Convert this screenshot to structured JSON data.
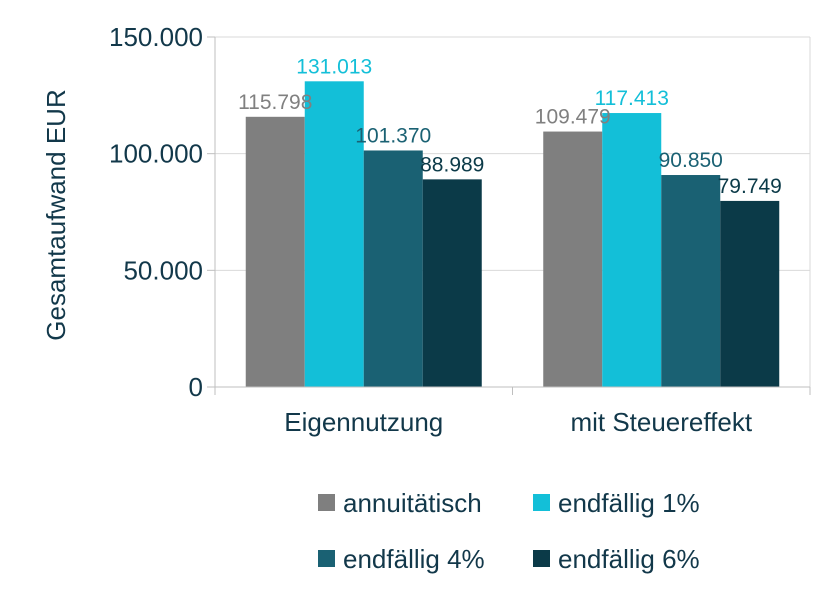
{
  "chart_data": {
    "type": "bar",
    "title": "",
    "xlabel": "",
    "ylabel": "Gesamtaufwand EUR",
    "categories": [
      "Eigennutzung",
      "mit Steuereffekt"
    ],
    "ylim": [
      0,
      150000
    ],
    "yticks": [
      0,
      50000,
      100000,
      150000
    ],
    "ytick_labels": [
      "0",
      "50.000",
      "100.000",
      "150.000"
    ],
    "grid": true,
    "legend_position": "bottom",
    "series": [
      {
        "name": "annuitätisch",
        "color": "#7f7f7f",
        "label_color": "#808080",
        "values": [
          115798,
          109479
        ],
        "labels": [
          "115.798",
          "109.479"
        ]
      },
      {
        "name": "endfällig 1%",
        "color": "#13bfd8",
        "label_color": "#13bfd8",
        "values": [
          131013,
          117413
        ],
        "labels": [
          "131.013",
          "117.413"
        ]
      },
      {
        "name": "endfällig 4%",
        "color": "#1a6173",
        "label_color": "#1a6173",
        "values": [
          101370,
          90850
        ],
        "labels": [
          "101.370",
          "90.850"
        ]
      },
      {
        "name": "endfällig 6%",
        "color": "#0b3a48",
        "label_color": "#0b3a48",
        "values": [
          88989,
          79749
        ],
        "labels": [
          "88.989",
          "79.749"
        ]
      }
    ]
  }
}
